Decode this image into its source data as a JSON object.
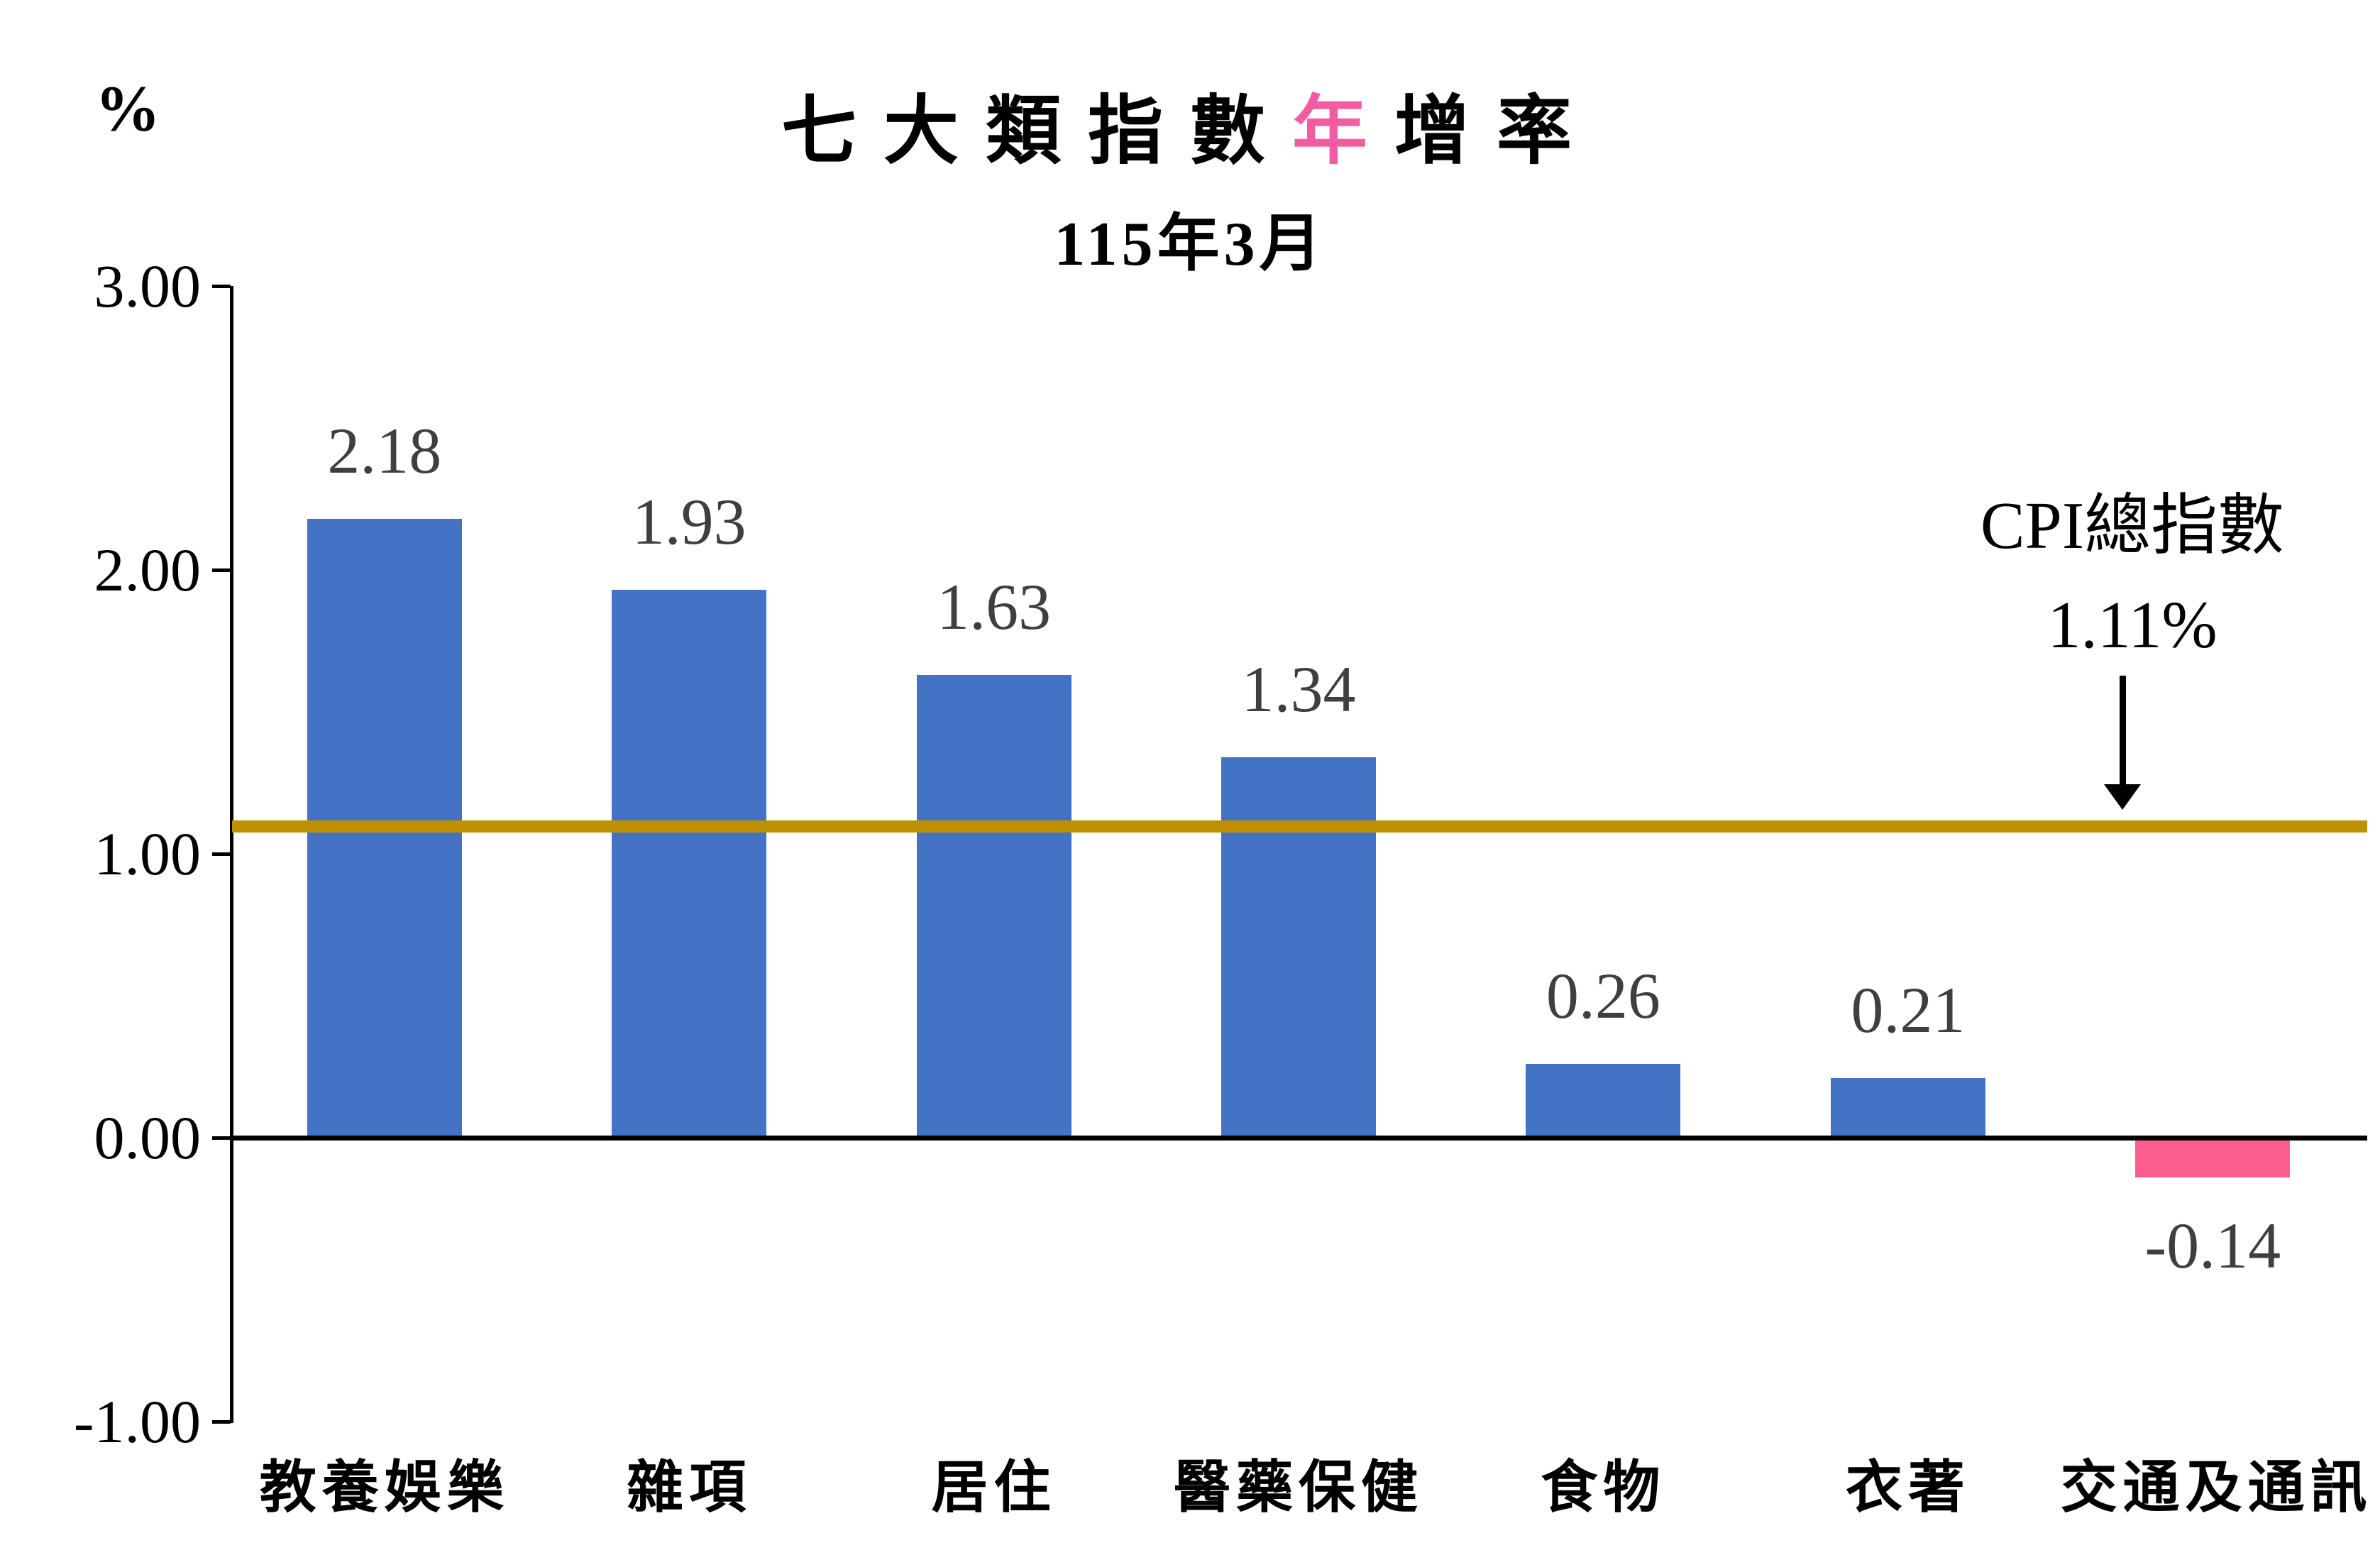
{
  "chart_data": {
    "type": "bar",
    "title": {
      "prefix": "七大類指數",
      "highlight": "年",
      "suffix": "增率",
      "highlight_color": "#F25CA2"
    },
    "subtitle": "115年3月",
    "unit_label": "%",
    "categories": [
      "教養娛樂",
      "雜項",
      "居住",
      "醫藥保健",
      "食物",
      "衣著",
      "交通及通訊"
    ],
    "values": [
      2.18,
      1.93,
      1.63,
      1.34,
      0.26,
      0.21,
      -0.14
    ],
    "value_labels": [
      "2.18",
      "1.93",
      "1.63",
      "1.34",
      "0.26",
      "0.21",
      "-0.14"
    ],
    "bar_color_positive": "#4472C4",
    "bar_color_negative": "#FB5E8C",
    "value_label_color": "#3F3F3F",
    "y_axis": {
      "min": -1.0,
      "max": 3.0,
      "tick_step": 1.0,
      "ticks": [
        3.0,
        2.0,
        1.0,
        0.0,
        -1.0
      ],
      "tick_labels": [
        "3.00",
        "2.00",
        "1.00",
        "0.00",
        "-1.00"
      ]
    },
    "reference_line": {
      "value": 1.11,
      "color": "#BF9000",
      "annotation_line1": "CPI總指數",
      "annotation_line2": "1.11%"
    },
    "gridlines": false,
    "legend": "none"
  }
}
